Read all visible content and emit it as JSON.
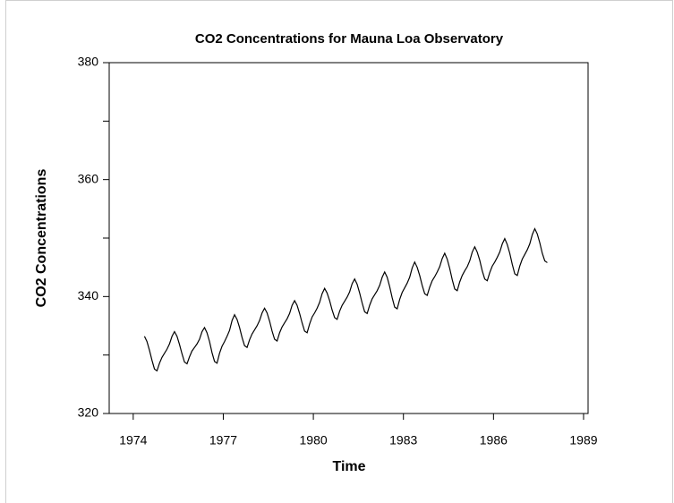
{
  "chart_data": {
    "type": "line",
    "title": "CO2 Concentrations for Mauna Loa Observatory",
    "xlabel": "Time",
    "ylabel": "CO2 Concentrations",
    "xlim": [
      1973.2,
      1989.15
    ],
    "ylim": [
      320,
      380
    ],
    "xticks": [
      1974,
      1977,
      1980,
      1983,
      1986,
      1989
    ],
    "yticks": [
      320,
      330,
      340,
      350,
      360,
      370,
      380
    ],
    "grid": false,
    "x": [
      1974.375,
      1974.458,
      1974.542,
      1974.625,
      1974.708,
      1974.792,
      1974.875,
      1974.958,
      1975.042,
      1975.125,
      1975.208,
      1975.292,
      1975.375,
      1975.458,
      1975.542,
      1975.625,
      1975.708,
      1975.792,
      1975.875,
      1975.958,
      1976.042,
      1976.125,
      1976.208,
      1976.292,
      1976.375,
      1976.458,
      1976.542,
      1976.625,
      1976.708,
      1976.792,
      1976.875,
      1976.958,
      1977.042,
      1977.125,
      1977.208,
      1977.292,
      1977.375,
      1977.458,
      1977.542,
      1977.625,
      1977.708,
      1977.792,
      1977.875,
      1977.958,
      1978.042,
      1978.125,
      1978.208,
      1978.292,
      1978.375,
      1978.458,
      1978.542,
      1978.625,
      1978.708,
      1978.792,
      1978.875,
      1978.958,
      1979.042,
      1979.125,
      1979.208,
      1979.292,
      1979.375,
      1979.458,
      1979.542,
      1979.625,
      1979.708,
      1979.792,
      1979.875,
      1979.958,
      1980.042,
      1980.125,
      1980.208,
      1980.292,
      1980.375,
      1980.458,
      1980.542,
      1980.625,
      1980.708,
      1980.792,
      1980.875,
      1980.958,
      1981.042,
      1981.125,
      1981.208,
      1981.292,
      1981.375,
      1981.458,
      1981.542,
      1981.625,
      1981.708,
      1981.792,
      1981.875,
      1981.958,
      1982.042,
      1982.125,
      1982.208,
      1982.292,
      1982.375,
      1982.458,
      1982.542,
      1982.625,
      1982.708,
      1982.792,
      1982.875,
      1982.958,
      1983.042,
      1983.125,
      1983.208,
      1983.292,
      1983.375,
      1983.458,
      1983.542,
      1983.625,
      1983.708,
      1983.792,
      1983.875,
      1983.958,
      1984.042,
      1984.125,
      1984.208,
      1984.292,
      1984.375,
      1984.458,
      1984.542,
      1984.625,
      1984.708,
      1984.792,
      1984.875,
      1984.958,
      1985.042,
      1985.125,
      1985.208,
      1985.292,
      1985.375,
      1985.458,
      1985.542,
      1985.625,
      1985.708,
      1985.792,
      1985.875,
      1985.958,
      1986.042,
      1986.125,
      1986.208,
      1986.292,
      1986.375,
      1986.458,
      1986.542,
      1986.625,
      1986.708,
      1986.792,
      1986.875,
      1986.958,
      1987.042,
      1987.125,
      1987.208,
      1987.292,
      1987.375,
      1987.458,
      1987.542,
      1987.625,
      1987.708,
      1987.792
    ],
    "values": [
      333.2,
      332.3,
      330.8,
      329.1,
      327.6,
      327.3,
      328.6,
      329.6,
      330.3,
      331.0,
      331.9,
      333.2,
      334.0,
      333.2,
      331.8,
      330.2,
      328.8,
      328.5,
      329.7,
      330.7,
      331.3,
      331.9,
      332.7,
      334.0,
      334.7,
      333.8,
      332.3,
      330.4,
      328.9,
      328.6,
      330.3,
      331.5,
      332.3,
      333.2,
      334.2,
      335.9,
      336.9,
      336.1,
      334.7,
      333.0,
      331.6,
      331.3,
      332.6,
      333.6,
      334.3,
      335.0,
      335.9,
      337.2,
      338.0,
      337.2,
      335.8,
      334.1,
      332.7,
      332.4,
      333.8,
      334.8,
      335.5,
      336.2,
      337.1,
      338.5,
      339.3,
      338.5,
      337.1,
      335.5,
      334.1,
      333.8,
      335.3,
      336.5,
      337.2,
      338.0,
      339.0,
      340.5,
      341.4,
      340.6,
      339.3,
      337.7,
      336.4,
      336.1,
      337.5,
      338.5,
      339.2,
      339.9,
      340.8,
      342.2,
      343.0,
      342.1,
      340.6,
      338.9,
      337.4,
      337.1,
      338.5,
      339.6,
      340.3,
      341.0,
      341.9,
      343.3,
      344.2,
      343.3,
      341.7,
      339.8,
      338.2,
      337.9,
      339.5,
      340.7,
      341.5,
      342.3,
      343.3,
      344.9,
      345.9,
      345.0,
      343.6,
      341.9,
      340.5,
      340.2,
      341.6,
      342.7,
      343.4,
      344.2,
      345.1,
      346.5,
      347.4,
      346.4,
      344.8,
      342.9,
      341.3,
      341.0,
      342.5,
      343.6,
      344.4,
      345.1,
      346.1,
      347.6,
      348.5,
      347.6,
      346.2,
      344.4,
      343.0,
      342.7,
      344.1,
      345.2,
      345.9,
      346.7,
      347.6,
      349.0,
      349.9,
      348.9,
      347.4,
      345.5,
      343.9,
      343.6,
      345.2,
      346.4,
      347.2,
      348.0,
      349.0,
      350.6,
      351.6,
      350.7,
      349.2,
      347.4,
      346.1,
      345.8
    ],
    "color": "#000000"
  }
}
